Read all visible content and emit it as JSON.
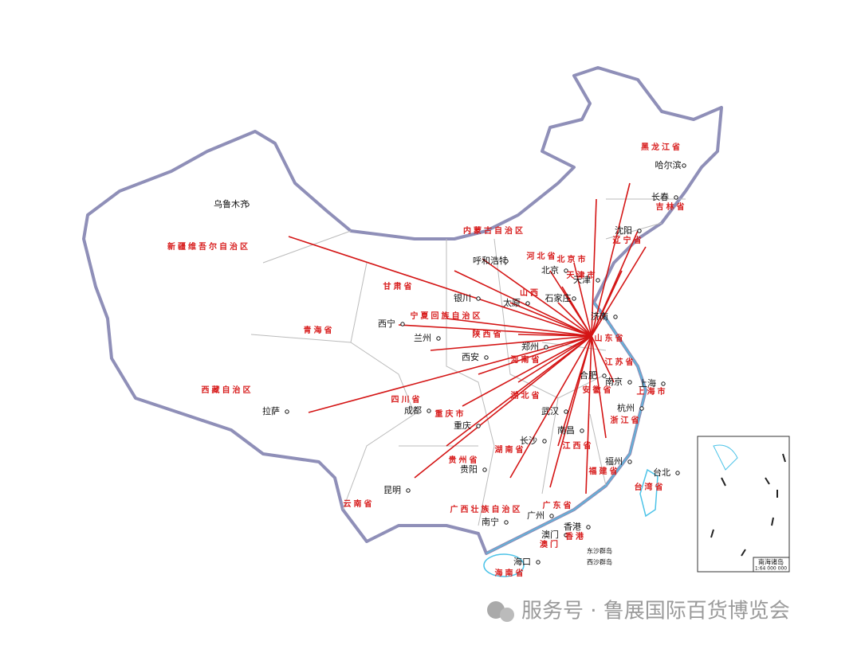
{
  "cities": [
    "乌鲁木齐",
    "哈尔滨",
    "长春",
    "沈阳",
    "呼和浩特",
    "北京",
    "天津",
    "石家庄",
    "太原",
    "银川",
    "济南",
    "西宁",
    "兰州",
    "西安",
    "郑州",
    "合肥",
    "南京",
    "上海",
    "杭州",
    "拉萨",
    "成都",
    "重庆",
    "武汉",
    "南昌",
    "长沙",
    "贵阳",
    "福州",
    "台北",
    "昆明",
    "南宁",
    "广州",
    "香港",
    "澳门",
    "海口",
    "东沙群岛",
    "西沙群岛"
  ],
  "provinces": [
    "黑龙江省",
    "吉林省",
    "辽宁省",
    "内蒙古自治区",
    "河北省",
    "北京市",
    "天津市",
    "山西",
    "山东省",
    "新疆维吾尔自治区",
    "甘肃省",
    "宁夏回族自治区",
    "青海省",
    "陕西省",
    "河南省",
    "江苏省",
    "上海市",
    "安徽省",
    "湖北省",
    "浙江省",
    "西藏自治区",
    "四川省",
    "重庆市",
    "湖南省",
    "江西省",
    "福建省",
    "贵州省",
    "云南省",
    "广西壮族自治区",
    "广东省",
    "香港",
    "澳门",
    "台湾省",
    "海南省"
  ],
  "inset": {
    "title": "南海诸岛",
    "scale": "1:64 000 000"
  },
  "watermark": "服务号 · 鲁展国际百货博览会"
}
